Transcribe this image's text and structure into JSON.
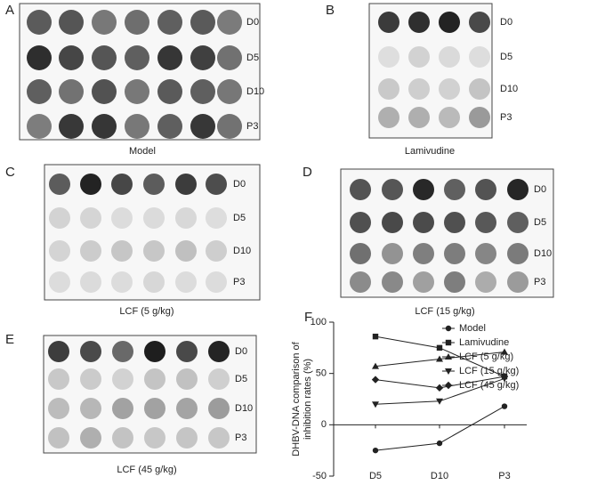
{
  "panels": [
    {
      "label": "A",
      "caption": "Model",
      "rows": [
        "D0",
        "D5",
        "D10",
        "P3"
      ]
    },
    {
      "label": "B",
      "caption": "Lamivudine",
      "rows": [
        "D0",
        "D5",
        "D10",
        "P3"
      ]
    },
    {
      "label": "C",
      "caption": "LCF (5 g/kg)",
      "rows": [
        "D0",
        "D5",
        "D10",
        "P3"
      ]
    },
    {
      "label": "D",
      "caption": "LCF (15 g/kg)",
      "rows": [
        "D0",
        "D5",
        "D10",
        "P3"
      ]
    },
    {
      "label": "E",
      "caption": "LCF (45 g/kg)",
      "rows": [
        "D0",
        "D5",
        "D10",
        "P3"
      ]
    }
  ],
  "chart_data": {
    "type": "line",
    "panel_label": "F",
    "y_label": [
      "DHBV-DNA comparison of",
      "inhibition rates (%)"
    ],
    "categories": [
      "D5",
      "D10",
      "P3"
    ],
    "series": [
      {
        "name": "Model",
        "color": "#222222",
        "marker": "circle",
        "values": [
          -25,
          -18,
          18
        ]
      },
      {
        "name": "Lamivudine",
        "color": "#222222",
        "marker": "square",
        "values": [
          86,
          75,
          47
        ]
      },
      {
        "name": "LCF (5 g/kg)",
        "color": "#222222",
        "marker": "triangle-up",
        "values": [
          57,
          64,
          71
        ]
      },
      {
        "name": "LCF (15 g/kg)",
        "color": "#222222",
        "marker": "triangle-down",
        "values": [
          20,
          23,
          45
        ]
      },
      {
        "name": "LCF (45 g/kg)",
        "color": "#222222",
        "marker": "diamond",
        "values": [
          44,
          36,
          47
        ]
      }
    ],
    "ylim": [
      -50,
      100
    ],
    "yticks": [
      -50,
      0,
      50,
      100
    ],
    "legend": "right"
  }
}
